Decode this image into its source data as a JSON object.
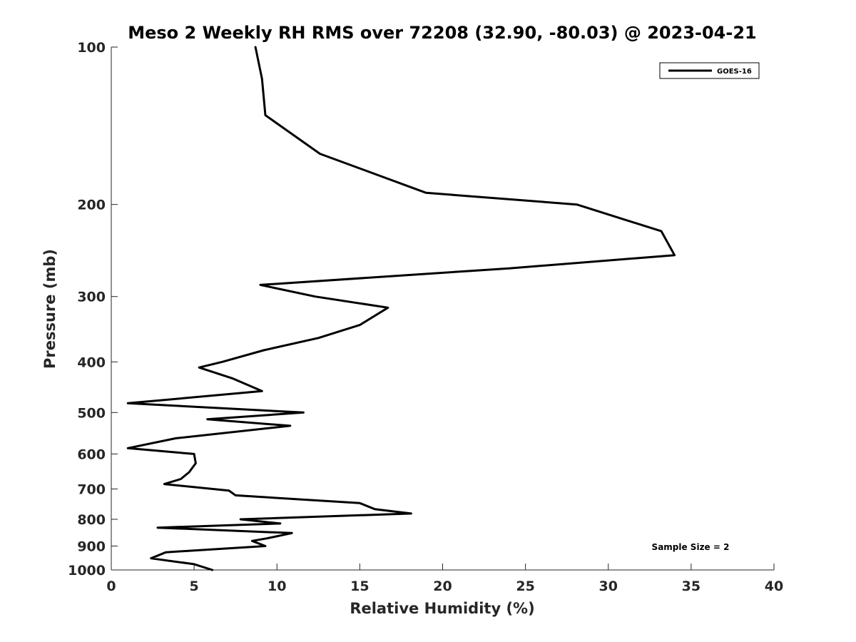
{
  "chart_data": {
    "type": "line",
    "title": "Meso 2 Weekly RH RMS over 72208 (32.90, -80.03) @ 2023-04-21",
    "xlabel": "Relative Humidity (%)",
    "ylabel": "Pressure (mb)",
    "xlim": [
      0,
      40
    ],
    "ylim": [
      100,
      1000
    ],
    "y_scale": "log",
    "y_reversed": true,
    "grid": false,
    "legend_position": "top-right",
    "x_ticks": [
      "0",
      "5",
      "10",
      "15",
      "20",
      "25",
      "30",
      "35",
      "40"
    ],
    "y_ticks": [
      "100",
      "200",
      "300",
      "400",
      "500",
      "600",
      "700",
      "800",
      "900",
      "1000"
    ],
    "annotation": "Sample Size = 2",
    "series": [
      {
        "name": "GOES-16",
        "color": "#000000",
        "points": [
          [
            8.7,
            100
          ],
          [
            9.1,
            115
          ],
          [
            9.3,
            135
          ],
          [
            12.6,
            160
          ],
          [
            19.0,
            190
          ],
          [
            28.1,
            200
          ],
          [
            33.2,
            225
          ],
          [
            34.0,
            250
          ],
          [
            24.0,
            265
          ],
          [
            9.0,
            285
          ],
          [
            12.3,
            300
          ],
          [
            16.7,
            315
          ],
          [
            15.0,
            340
          ],
          [
            12.5,
            360
          ],
          [
            9.2,
            380
          ],
          [
            6.7,
            400
          ],
          [
            5.3,
            410
          ],
          [
            7.3,
            430
          ],
          [
            9.1,
            455
          ],
          [
            1.0,
            480
          ],
          [
            11.6,
            500
          ],
          [
            5.8,
            515
          ],
          [
            10.8,
            530
          ],
          [
            3.9,
            560
          ],
          [
            1.0,
            585
          ],
          [
            5.0,
            600
          ],
          [
            5.1,
            625
          ],
          [
            4.7,
            650
          ],
          [
            4.2,
            670
          ],
          [
            3.2,
            685
          ],
          [
            7.1,
            705
          ],
          [
            7.5,
            720
          ],
          [
            15.0,
            745
          ],
          [
            15.9,
            765
          ],
          [
            18.1,
            780
          ],
          [
            7.8,
            800
          ],
          [
            10.2,
            815
          ],
          [
            2.8,
            830
          ],
          [
            10.9,
            850
          ],
          [
            9.4,
            870
          ],
          [
            8.5,
            880
          ],
          [
            9.3,
            900
          ],
          [
            3.3,
            925
          ],
          [
            2.4,
            950
          ],
          [
            5.0,
            975
          ],
          [
            6.1,
            1000
          ]
        ]
      }
    ]
  }
}
